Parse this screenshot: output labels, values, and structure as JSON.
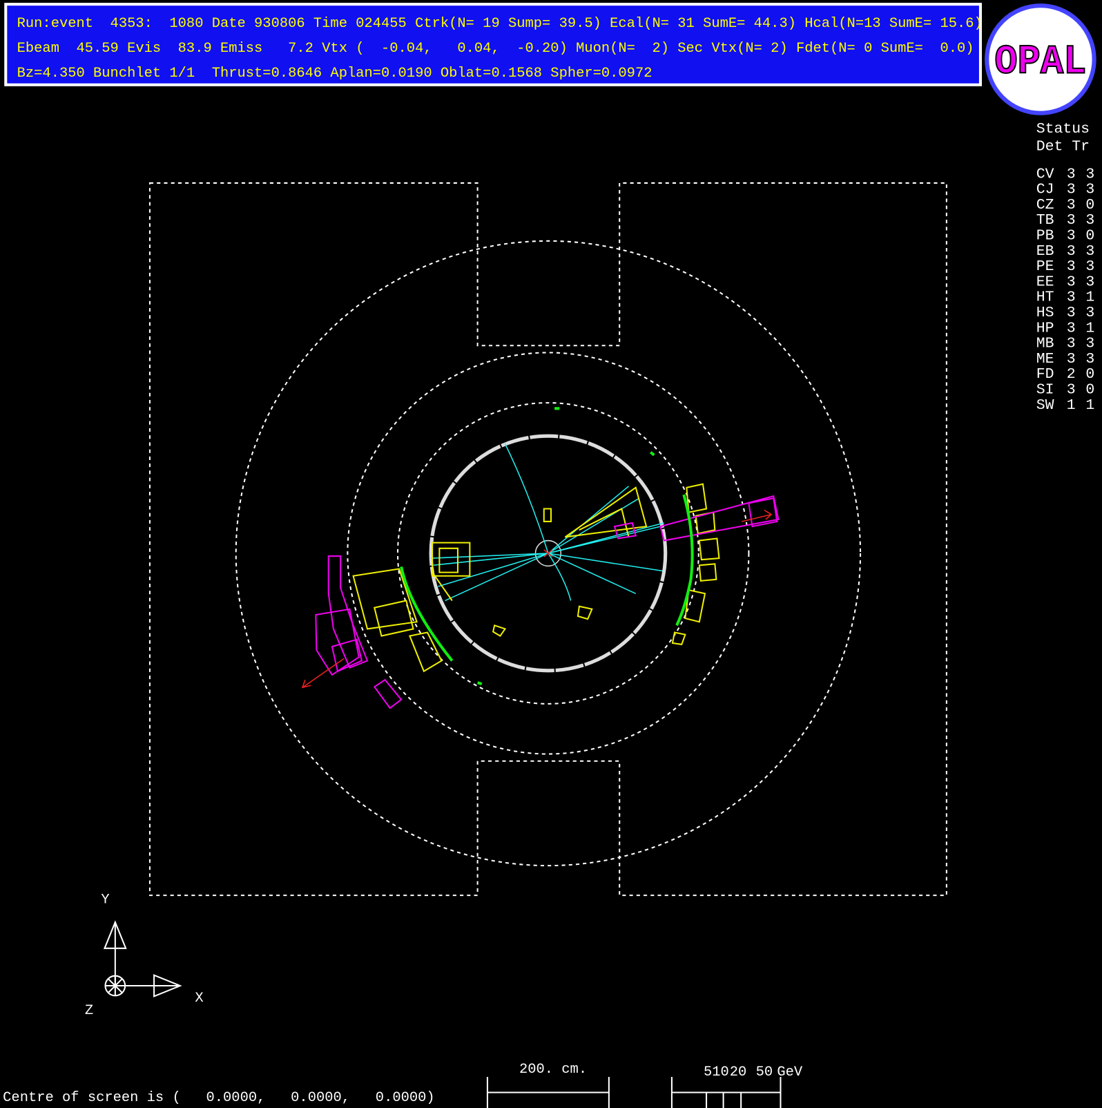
{
  "header": {
    "lines": [
      "Run:event  4353:  1080 Date 930806 Time 024455 Ctrk(N= 19 Sump= 39.5) Ecal(N= 31 SumE= 44.3) Hcal(N=13 SumE= 15.6)",
      "Ebeam  45.59 Evis  83.9 Emiss   7.2 Vtx (  -0.04,   0.04,  -0.20) Muon(N=  2) Sec Vtx(N= 2) Fdet(N= 0 SumE=  0.0)",
      "Bz=4.350 Bunchlet 1/1  Thrust=0.8646 Aplan=0.0190 Oblat=0.1568 Spher=0.0972"
    ]
  },
  "logo": "OPAL",
  "status": {
    "title": "Status",
    "columns": "Det Tr",
    "rows": [
      [
        "CV",
        "3",
        "3"
      ],
      [
        "CJ",
        "3",
        "3"
      ],
      [
        "CZ",
        "3",
        "0"
      ],
      [
        "TB",
        "3",
        "3"
      ],
      [
        "PB",
        "3",
        "0"
      ],
      [
        "EB",
        "3",
        "3"
      ],
      [
        "PE",
        "3",
        "3"
      ],
      [
        "EE",
        "3",
        "3"
      ],
      [
        "HT",
        "3",
        "1"
      ],
      [
        "HS",
        "3",
        "3"
      ],
      [
        "HP",
        "3",
        "1"
      ],
      [
        "MB",
        "3",
        "3"
      ],
      [
        "ME",
        "3",
        "3"
      ],
      [
        "FD",
        "2",
        "0"
      ],
      [
        "SI",
        "3",
        "0"
      ],
      [
        "SW",
        "1",
        "1"
      ]
    ]
  },
  "axes": {
    "y": "Y",
    "x": "X",
    "z": "Z"
  },
  "scale": {
    "length": "200. cm.",
    "energy": [
      "5",
      "10",
      "20",
      "50",
      "GeV"
    ]
  },
  "footer": "Centre of screen is (   0.0000,   0.0000,   0.0000)"
}
